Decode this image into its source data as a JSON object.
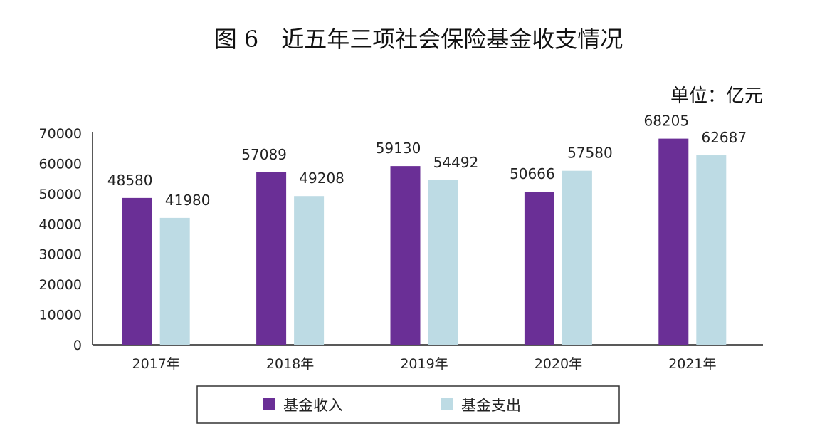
{
  "chart_data": {
    "type": "bar",
    "title": "图 6　近五年三项社会保险基金收支情况",
    "unit": "单位：亿元",
    "categories": [
      "2017年",
      "2018年",
      "2019年",
      "2020年",
      "2021年"
    ],
    "series": [
      {
        "name": "基金收入",
        "color": "#6a2f96",
        "values": [
          48580,
          57089,
          59130,
          50666,
          68205
        ]
      },
      {
        "name": "基金支出",
        "color": "#bddbe4",
        "values": [
          41980,
          49208,
          54492,
          57580,
          62687
        ]
      }
    ],
    "yticks": [
      0,
      10000,
      20000,
      30000,
      40000,
      50000,
      60000,
      70000
    ],
    "ylim": [
      0,
      70000
    ],
    "legend_position": "bottom",
    "grid": false
  }
}
